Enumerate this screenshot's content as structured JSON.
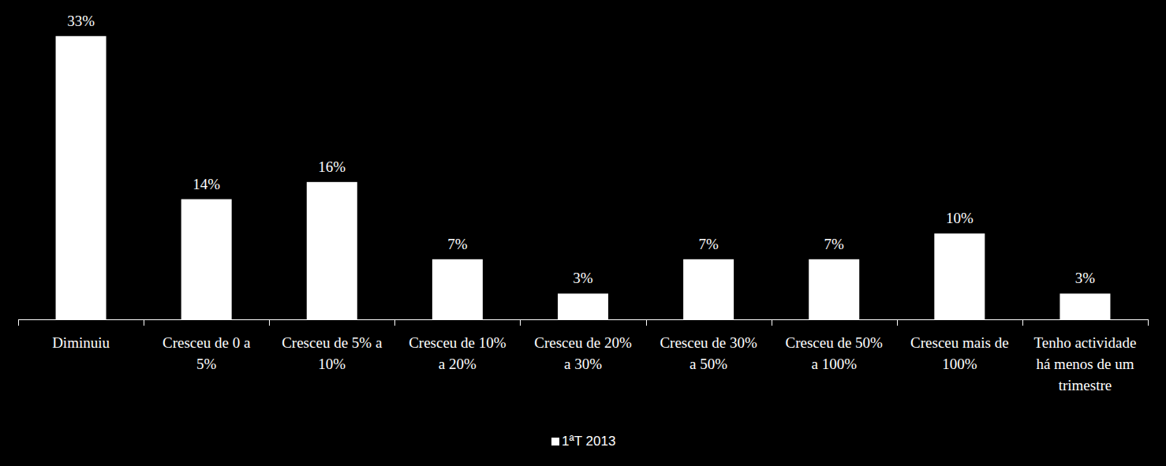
{
  "chart_data": {
    "type": "bar",
    "categories": [
      "Diminuiu",
      "Cresceu de 0 a 5%",
      "Cresceu de 5% a 10%",
      "Cresceu de 10% a 20%",
      "Cresceu de 20% a 30%",
      "Cresceu de 30% a 50%",
      "Cresceu de 50% a 100%",
      "Cresceu mais de 100%",
      "Tenho actividade há menos de um trimestre"
    ],
    "series": [
      {
        "name": "1ªT 2013",
        "color": "#ffffff",
        "values": [
          33,
          14,
          16,
          7,
          3,
          7,
          7,
          10,
          3
        ],
        "value_labels": [
          "33%",
          "14%",
          "16%",
          "7%",
          "3%",
          "7%",
          "7%",
          "10%",
          "3%"
        ]
      }
    ],
    "ylim": [
      0,
      35
    ],
    "data_labels": true,
    "tick_labels": "x",
    "legend": "bottom"
  }
}
